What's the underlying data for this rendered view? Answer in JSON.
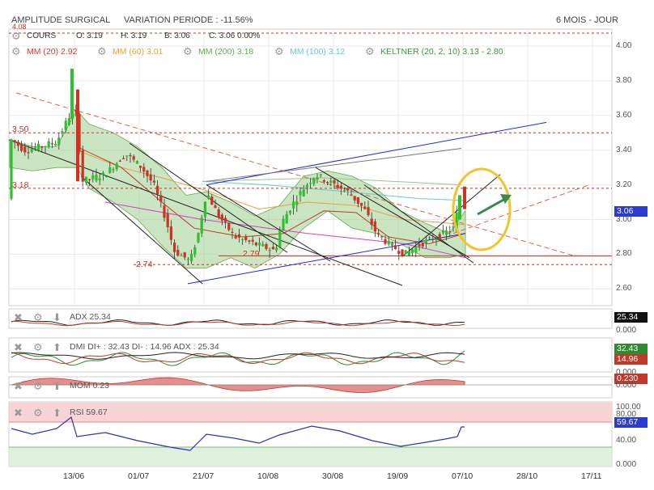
{
  "header": {
    "company": "AMPLITUDE SURGICAL",
    "variation_label": "VARIATION PERIODE : -11.56%",
    "period": "6 MOIS - JOUR"
  },
  "legend_row1": {
    "cours": "COURS",
    "o": "O: 3.19",
    "h": "H: 3.19",
    "b": "B: 3.06",
    "c": "C: 3.06 0.00%"
  },
  "legend_row2": {
    "mm20": "MM (20)  2.92",
    "mm60": "MM (60)  3.01",
    "mm200": "MM (200)  3.18",
    "mm100": "MM (100)  3.12",
    "keltner": "KELTNER (20, 2, 10)  3.13 - 2.80"
  },
  "colors": {
    "mm20": "#e03a2a",
    "mm60": "#f0a030",
    "mm200": "#6aa84f",
    "mm100": "#66c8d8",
    "keltner": "#3a9a3a",
    "up": "#2ec12e",
    "down": "#d23020",
    "level_line": "#d23020",
    "annot_circle": "#f2c42a",
    "annot_arrow": "#3a8a50"
  },
  "price_levels": {
    "l350": "3.50",
    "l318": "3.18",
    "l274": "2.74",
    "l279": "2.79",
    "l408": "4.08"
  },
  "last_price_badge": "3.06",
  "y_ticks": [
    "4.00",
    "3.80",
    "3.60",
    "3.40",
    "3.20",
    "3.00",
    "2.80",
    "2.60"
  ],
  "x_ticks": [
    "13/06",
    "01/07",
    "21/07",
    "10/08",
    "30/08",
    "19/09",
    "07/10",
    "28/10",
    "17/11"
  ],
  "panels": {
    "adx": {
      "label": "ADX  25.34",
      "badge": "25.34",
      "zero": "0.000"
    },
    "dmi": {
      "label": "DMI  DI+ : 32.43  DI- : 14.96  ADX : 25.34",
      "badge_plus": "32.43",
      "badge_minus": "14.96",
      "zero": "0.000"
    },
    "mom": {
      "label": "MOM  0.23",
      "badge": "0.230",
      "zero": "0.000"
    },
    "rsi": {
      "label": "RSI  59.67",
      "badge": "59.67",
      "ticks": [
        "100.00",
        "80.00",
        "40.00",
        "0.000"
      ]
    }
  },
  "chart_data": {
    "type": "candlestick",
    "title": "AMPLITUDE SURGICAL",
    "y_range": [
      2.55,
      4.1
    ],
    "x_range_dates": [
      "2016-05-26",
      "2016-11-20"
    ],
    "candles_ohlc_sample": [
      {
        "date": "2016-05-27",
        "o": 3.45,
        "h": 3.48,
        "l": 3.42,
        "c": 3.44
      },
      {
        "date": "2016-06-13",
        "o": 3.58,
        "h": 3.87,
        "l": 3.55,
        "c": 3.78
      },
      {
        "date": "2016-06-15",
        "o": 3.73,
        "h": 3.75,
        "l": 3.2,
        "c": 3.22
      },
      {
        "date": "2016-07-05",
        "o": 3.33,
        "h": 3.36,
        "l": 3.15,
        "c": 3.18
      },
      {
        "date": "2016-07-15",
        "o": 2.85,
        "h": 2.9,
        "l": 2.72,
        "c": 2.75
      },
      {
        "date": "2016-07-19",
        "o": 2.8,
        "h": 3.05,
        "l": 2.78,
        "c": 3.02
      },
      {
        "date": "2016-07-21",
        "o": 3.0,
        "h": 3.19,
        "l": 2.98,
        "c": 3.16
      },
      {
        "date": "2016-08-10",
        "o": 2.8,
        "h": 2.85,
        "l": 2.78,
        "c": 2.83
      },
      {
        "date": "2016-08-11",
        "o": 2.82,
        "h": 3.02,
        "l": 2.8,
        "c": 2.98
      },
      {
        "date": "2016-08-24",
        "o": 3.22,
        "h": 3.28,
        "l": 3.2,
        "c": 3.26
      },
      {
        "date": "2016-09-19",
        "o": 2.84,
        "h": 2.88,
        "l": 2.78,
        "c": 2.8
      },
      {
        "date": "2016-10-06",
        "o": 3.0,
        "h": 3.14,
        "l": 2.98,
        "c": 3.12
      },
      {
        "date": "2016-10-07",
        "o": 3.19,
        "h": 3.19,
        "l": 3.06,
        "c": 3.06
      }
    ],
    "indicators": {
      "mm20": 2.92,
      "mm60": 3.01,
      "mm200": 3.18,
      "mm100": 3.12,
      "keltner_upper": 3.13,
      "keltner_lower": 2.8,
      "adx": 25.34,
      "di_plus": 32.43,
      "di_minus": 14.96,
      "mom": 0.23,
      "rsi": 59.67
    },
    "horizontal_levels": [
      3.5,
      3.18,
      2.79,
      2.74
    ]
  }
}
